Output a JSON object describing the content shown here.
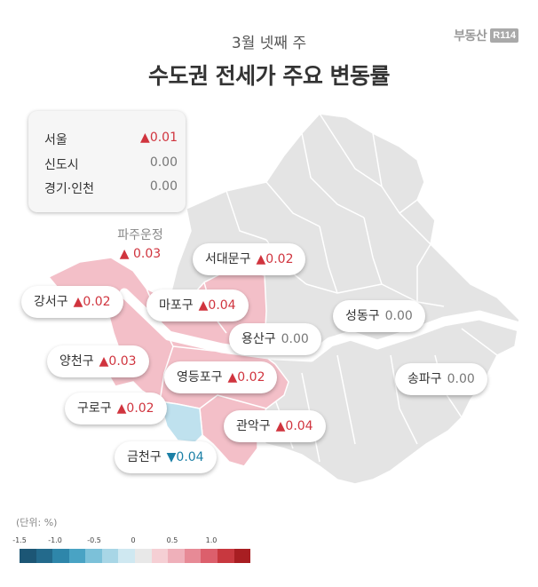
{
  "header": {
    "brand_text": "부동산",
    "brand_badge": "R114",
    "subtitle": "3월 넷째 주",
    "title": "수도권 전세가 주요 변동률"
  },
  "summary": [
    {
      "name": "서울",
      "value": "▲0.01",
      "trend": "up"
    },
    {
      "name": "신도시",
      "value": "0.00",
      "trend": "flat"
    },
    {
      "name": "경기·인천",
      "value": "0.00",
      "trend": "flat"
    }
  ],
  "floating_label": {
    "name": "파주운정",
    "value": "▲ 0.03",
    "trend": "up"
  },
  "districts": [
    {
      "name": "서대문구",
      "value": "▲0.02",
      "trend": "up"
    },
    {
      "name": "강서구",
      "value": "▲0.02",
      "trend": "up"
    },
    {
      "name": "마포구",
      "value": "▲0.04",
      "trend": "up"
    },
    {
      "name": "성동구",
      "value": "0.00",
      "trend": "flat"
    },
    {
      "name": "용산구",
      "value": "0.00",
      "trend": "flat"
    },
    {
      "name": "양천구",
      "value": "▲0.03",
      "trend": "up"
    },
    {
      "name": "영등포구",
      "value": "▲0.02",
      "trend": "up"
    },
    {
      "name": "송파구",
      "value": "0.00",
      "trend": "flat"
    },
    {
      "name": "구로구",
      "value": "▲0.02",
      "trend": "up"
    },
    {
      "name": "관악구",
      "value": "▲0.04",
      "trend": "up"
    },
    {
      "name": "금천구",
      "value": "▼0.04",
      "trend": "down"
    }
  ],
  "legend": {
    "unit": "(단위: %)",
    "ticks": [
      "-1.5",
      "-1.0",
      "-0.5",
      "0",
      "0.5",
      "1.0"
    ],
    "colors": [
      "#1c5675",
      "#236a8c",
      "#2e86aa",
      "#49a3c4",
      "#7cc1d9",
      "#a8d6e6",
      "#cfe8f1",
      "#e8e8e8",
      "#f5cfd4",
      "#efb0ba",
      "#e78a96",
      "#dc5f6c",
      "#c8383f",
      "#a81e22"
    ]
  },
  "colors": {
    "base_district": "#e4e4e4",
    "rising": "#f3bfc8",
    "falling": "#bfe1ee",
    "river": "#ffffff",
    "up_text": "#d0343e",
    "down_text": "#1a7fa6"
  }
}
